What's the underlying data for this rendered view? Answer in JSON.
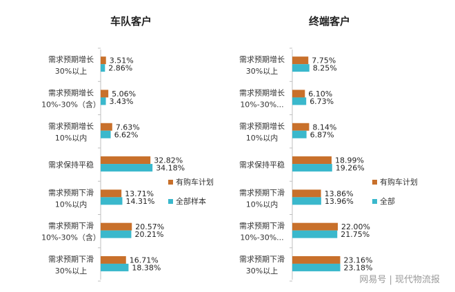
{
  "watermark": "网易号 | 现代物流报",
  "colors": {
    "series_a": "#C8702B",
    "series_b": "#3AB8CC"
  },
  "chart_data": [
    {
      "type": "bar",
      "orientation": "horizontal",
      "title": "车队客户",
      "categories": [
        [
          "需求预期增长",
          "30%以上"
        ],
        [
          "需求预期增长",
          "10%-30%（含）"
        ],
        [
          "需求预期增长",
          "10%以内"
        ],
        [
          "需求保持平稳"
        ],
        [
          "需求预期下滑",
          "10%以内"
        ],
        [
          "需求预期下滑",
          "10%-30%（含）"
        ],
        [
          "需求预期下滑",
          "30%以上"
        ]
      ],
      "series": [
        {
          "name": "有购车计划",
          "values": [
            3.51,
            5.06,
            7.63,
            32.82,
            13.71,
            20.57,
            16.71
          ]
        },
        {
          "name": "全部样本",
          "values": [
            2.86,
            3.43,
            6.62,
            34.18,
            14.31,
            20.21,
            18.38
          ]
        }
      ],
      "data_labels": [
        [
          "3.51%",
          "5.06%",
          "7.63%",
          "32.82%",
          "13.71%",
          "20.57%",
          "16.71%"
        ],
        [
          "2.86%",
          "3.43%",
          "6.62%",
          "34.18%",
          "14.31%",
          "20.21%",
          "18.38%"
        ]
      ],
      "legend_position": "right"
    },
    {
      "type": "bar",
      "orientation": "horizontal",
      "title": "终端客户",
      "categories": [
        [
          "需求预期增长",
          "30%以上"
        ],
        [
          "需求预期增长",
          "10%-30%..."
        ],
        [
          "需求预期增长",
          "10%以内"
        ],
        [
          "需求保持平稳"
        ],
        [
          "需求预期下滑",
          "10%以内"
        ],
        [
          "需求预期下滑",
          "10%-30%..."
        ],
        [
          "需求预期下滑",
          "30%以上"
        ]
      ],
      "series": [
        {
          "name": "有购车计划",
          "values": [
            7.75,
            6.1,
            8.14,
            18.99,
            13.86,
            22.0,
            23.16
          ]
        },
        {
          "name": "全部",
          "values": [
            8.25,
            6.73,
            6.87,
            19.26,
            13.96,
            21.75,
            23.18
          ]
        }
      ],
      "data_labels": [
        [
          "7.75%",
          "6.10%",
          "8.14%",
          "18.99%",
          "13.86%",
          "22.00%",
          "23.16%"
        ],
        [
          "8.25%",
          "6.73%",
          "6.87%",
          "19.26%",
          "13.96%",
          "21.75%",
          "23.18%"
        ]
      ],
      "legend_position": "right"
    }
  ]
}
